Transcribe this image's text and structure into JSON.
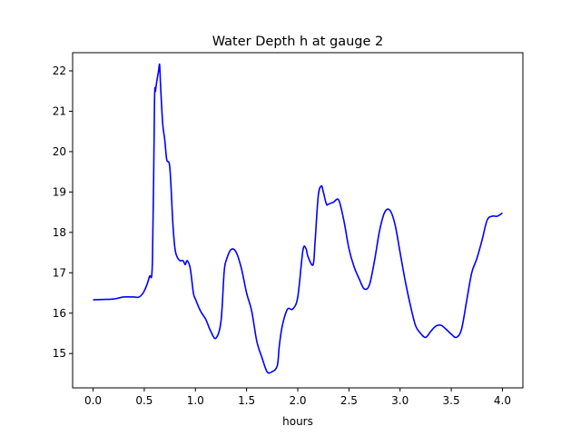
{
  "chart_data": {
    "type": "line",
    "title": "Water Depth h at gauge 2",
    "xlabel": "hours",
    "ylabel": "",
    "xlim": [
      -0.2,
      4.2
    ],
    "ylim": [
      14.15,
      22.45
    ],
    "xticks": [
      0.0,
      0.5,
      1.0,
      1.5,
      2.0,
      2.5,
      3.0,
      3.5,
      4.0
    ],
    "xtick_labels": [
      "0.0",
      "0.5",
      "1.0",
      "1.5",
      "2.0",
      "2.5",
      "3.0",
      "3.5",
      "4.0"
    ],
    "yticks": [
      15,
      16,
      17,
      18,
      19,
      20,
      21,
      22
    ],
    "ytick_labels": [
      "15",
      "16",
      "17",
      "18",
      "19",
      "20",
      "21",
      "22"
    ],
    "grid": false,
    "line_color": "#0000ff",
    "series": [
      {
        "x": [
          0.0,
          0.1,
          0.2,
          0.3,
          0.4,
          0.45,
          0.5,
          0.55,
          0.58,
          0.6,
          0.61,
          0.62,
          0.64,
          0.65,
          0.66,
          0.68,
          0.7,
          0.72,
          0.75,
          0.78,
          0.8,
          0.82,
          0.85,
          0.88,
          0.9,
          0.92,
          0.95,
          0.98,
          1.0,
          1.05,
          1.1,
          1.15,
          1.2,
          1.25,
          1.28,
          1.3,
          1.35,
          1.4,
          1.45,
          1.5,
          1.55,
          1.6,
          1.65,
          1.7,
          1.75,
          1.8,
          1.82,
          1.85,
          1.9,
          1.95,
          2.0,
          2.05,
          2.08,
          2.1,
          2.15,
          2.17,
          2.2,
          2.23,
          2.25,
          2.28,
          2.3,
          2.35,
          2.4,
          2.45,
          2.5,
          2.55,
          2.6,
          2.65,
          2.7,
          2.75,
          2.8,
          2.85,
          2.9,
          2.95,
          3.0,
          3.05,
          3.1,
          3.15,
          3.2,
          3.25,
          3.3,
          3.35,
          3.4,
          3.45,
          3.5,
          3.55,
          3.6,
          3.65,
          3.7,
          3.75,
          3.8,
          3.85,
          3.9,
          3.95,
          4.0
        ],
        "y": [
          16.33,
          16.34,
          16.35,
          16.4,
          16.4,
          16.4,
          16.55,
          16.9,
          17.3,
          21.2,
          21.5,
          21.7,
          22.0,
          22.15,
          21.6,
          20.7,
          20.3,
          19.8,
          19.6,
          18.2,
          17.6,
          17.4,
          17.3,
          17.3,
          17.2,
          17.3,
          17.1,
          16.5,
          16.35,
          16.05,
          15.85,
          15.55,
          15.38,
          15.8,
          17.0,
          17.3,
          17.58,
          17.5,
          17.1,
          16.5,
          16.05,
          15.3,
          14.9,
          14.55,
          14.55,
          14.7,
          15.2,
          15.7,
          16.1,
          16.1,
          16.4,
          17.55,
          17.6,
          17.4,
          17.2,
          17.8,
          18.9,
          19.15,
          19.0,
          18.7,
          18.7,
          18.75,
          18.8,
          18.3,
          17.6,
          17.15,
          16.85,
          16.6,
          16.7,
          17.3,
          18.05,
          18.5,
          18.55,
          18.2,
          17.5,
          16.8,
          16.2,
          15.7,
          15.5,
          15.4,
          15.55,
          15.68,
          15.7,
          15.6,
          15.48,
          15.4,
          15.6,
          16.3,
          17.0,
          17.35,
          17.8,
          18.3,
          18.4,
          18.4,
          18.48
        ]
      }
    ]
  }
}
